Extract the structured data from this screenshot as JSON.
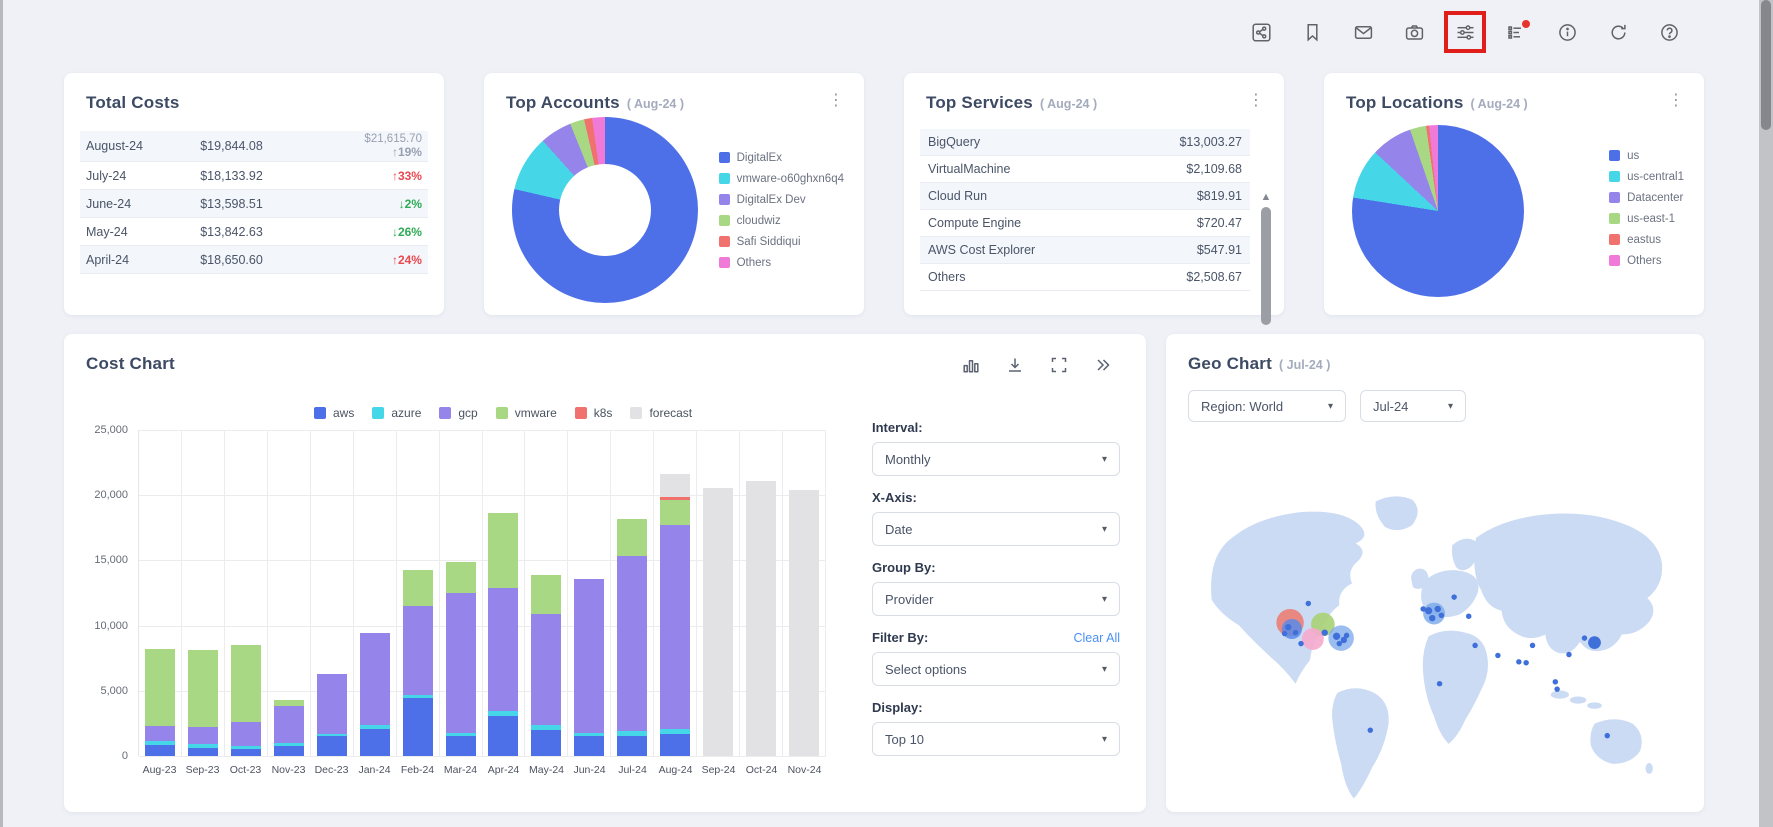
{
  "toolbar": {
    "icons": [
      "share-icon",
      "bookmark-icon",
      "mail-icon",
      "camera-icon",
      "sliders-icon",
      "list-badge-icon",
      "info-icon",
      "refresh-icon",
      "help-icon"
    ],
    "highlight_color": "#e01e1a",
    "badge_color": "#e8332a"
  },
  "total_costs": {
    "title": "Total Costs",
    "rows": [
      {
        "month": "August-24",
        "value": "$19,844.08",
        "forecast": "$21,615.70",
        "pct": "↑19%",
        "pct_class": "pct-gray"
      },
      {
        "month": "July-24",
        "value": "$18,133.92",
        "forecast": null,
        "pct": "↑33%",
        "pct_class": "pct-red"
      },
      {
        "month": "June-24",
        "value": "$13,598.51",
        "forecast": null,
        "pct": "↓2%",
        "pct_class": "pct-green"
      },
      {
        "month": "May-24",
        "value": "$13,842.63",
        "forecast": null,
        "pct": "↓26%",
        "pct_class": "pct-green"
      },
      {
        "month": "April-24",
        "value": "$18,650.60",
        "forecast": null,
        "pct": "↑24%",
        "pct_class": "pct-red"
      }
    ]
  },
  "top_accounts": {
    "title": "Top Accounts",
    "period": "( Aug-24 )",
    "menu": "⋮"
  },
  "top_services": {
    "title": "Top Services",
    "period": "( Aug-24 )",
    "menu": "⋮",
    "rows": [
      {
        "name": "BigQuery",
        "value": "$13,003.27"
      },
      {
        "name": "VirtualMachine",
        "value": "$2,109.68"
      },
      {
        "name": "Cloud Run",
        "value": "$819.91"
      },
      {
        "name": "Compute Engine",
        "value": "$720.47"
      },
      {
        "name": "AWS Cost Explorer",
        "value": "$547.91"
      },
      {
        "name": "Others",
        "value": "$2,508.67"
      }
    ]
  },
  "top_locations": {
    "title": "Top Locations",
    "period": "( Aug-24 )",
    "menu": "⋮"
  },
  "cost_chart": {
    "title": "Cost Chart",
    "toolbar_icons": [
      "bar-chart-icon",
      "download-icon",
      "fullscreen-icon",
      "double-chevron-icon"
    ],
    "controls": {
      "interval_label": "Interval:",
      "interval_value": "Monthly",
      "xaxis_label": "X-Axis:",
      "xaxis_value": "Date",
      "groupby_label": "Group By:",
      "groupby_value": "Provider",
      "filterby_label": "Filter By:",
      "filterby_value": "Select options",
      "clear_all": "Clear All",
      "display_label": "Display:",
      "display_value": "Top 10"
    }
  },
  "geo_chart": {
    "title": "Geo Chart",
    "period": "( Jul-24 )",
    "region_select": "Region: World",
    "month_select": "Jul-24"
  },
  "chart_data": [
    {
      "id": "top_accounts_donut",
      "type": "pie",
      "donut": true,
      "title": "Top Accounts (Aug-24)",
      "labels": [
        "DigitalEx",
        "vmware-o60ghxn6q4",
        "DigitalEx Dev",
        "cloudwiz",
        "Safi Siddiqui",
        "Others"
      ],
      "colors": [
        "#4d6fe8",
        "#45d6e8",
        "#9585ea",
        "#a8d884",
        "#f0716e",
        "#f07ad8"
      ],
      "degrees": [
        283,
        35,
        20,
        9,
        5,
        8
      ],
      "legend_position": "right"
    },
    {
      "id": "top_locations_pie",
      "type": "pie",
      "donut": false,
      "title": "Top Locations (Aug-24)",
      "labels": [
        "us",
        "us-central1",
        "Datacenter",
        "us-east-1",
        "eastus",
        "Others"
      ],
      "colors": [
        "#4d6fe8",
        "#45d6e8",
        "#9585ea",
        "#a8d884",
        "#f0716e",
        "#f07ad8"
      ],
      "degrees": [
        279,
        34,
        28,
        11,
        2,
        6
      ],
      "legend_position": "right"
    },
    {
      "id": "cost_chart_bars",
      "type": "bar",
      "stacked": true,
      "title": "Cost Chart",
      "categories": [
        "Aug-23",
        "Sep-23",
        "Oct-23",
        "Nov-23",
        "Dec-23",
        "Jan-24",
        "Feb-24",
        "Mar-24",
        "Apr-24",
        "May-24",
        "Jun-24",
        "Jul-24",
        "Aug-24",
        "Sep-24",
        "Oct-24",
        "Nov-24"
      ],
      "series": [
        {
          "name": "aws",
          "color": "#4d6fe8",
          "values": [
            850,
            600,
            500,
            750,
            1500,
            2100,
            4450,
            1500,
            3100,
            2000,
            1500,
            1500,
            1700,
            0,
            0,
            0
          ]
        },
        {
          "name": "azure",
          "color": "#45d6e8",
          "values": [
            280,
            350,
            280,
            250,
            200,
            250,
            200,
            300,
            350,
            350,
            300,
            450,
            400,
            0,
            0,
            0
          ]
        },
        {
          "name": "gcp",
          "color": "#9585ea",
          "values": [
            1200,
            1300,
            1850,
            2850,
            4600,
            7100,
            6850,
            10700,
            9450,
            8550,
            11800,
            13400,
            15600,
            0,
            0,
            0
          ]
        },
        {
          "name": "vmware",
          "color": "#a8d884",
          "values": [
            5900,
            5850,
            5900,
            450,
            0,
            0,
            2750,
            2400,
            5750,
            2950,
            0,
            2800,
            1900,
            0,
            0,
            0
          ]
        },
        {
          "name": "k8s",
          "color": "#f0716e",
          "values": [
            0,
            0,
            0,
            0,
            0,
            0,
            0,
            0,
            0,
            0,
            0,
            0,
            250,
            0,
            0,
            0
          ]
        },
        {
          "name": "forecast",
          "color": "#e2e2e4",
          "values": [
            0,
            0,
            0,
            0,
            0,
            0,
            0,
            0,
            0,
            0,
            0,
            0,
            1770,
            20550,
            21100,
            20430
          ]
        }
      ],
      "ylim": [
        0,
        25000
      ],
      "y_ticks": [
        "0",
        "5,000",
        "10,000",
        "15,000",
        "20,000",
        "25,000"
      ],
      "grid": true,
      "legend_position": "top"
    },
    {
      "id": "geo_bubbles",
      "type": "scatter",
      "title": "Geo Chart (Jul-24)",
      "land_color": "#cbdbf4",
      "dot_color": "#3f6fd9",
      "bubbles": [
        {
          "x": 106,
          "y": 185,
          "r": 15,
          "color": "#ec7d74",
          "o": 0.9
        },
        {
          "x": 108,
          "y": 192,
          "r": 11,
          "color": "#5b8bea",
          "o": 0.85
        },
        {
          "x": 142,
          "y": 187,
          "r": 13,
          "color": "#a9d175",
          "o": 0.9
        },
        {
          "x": 131,
          "y": 203,
          "r": 12,
          "color": "#f6aacd",
          "o": 0.9
        },
        {
          "x": 162,
          "y": 202,
          "r": 14,
          "color": "#79a7ea",
          "o": 0.75
        },
        {
          "x": 264,
          "y": 175,
          "r": 12,
          "color": "#79a7ea",
          "o": 0.8
        }
      ],
      "dots": [
        {
          "x": 104,
          "y": 190,
          "r": 3.5
        },
        {
          "x": 112,
          "y": 196,
          "r": 3
        },
        {
          "x": 100,
          "y": 197,
          "r": 3
        },
        {
          "x": 144,
          "y": 196,
          "r": 3.5
        },
        {
          "x": 126,
          "y": 164,
          "r": 3
        },
        {
          "x": 118,
          "y": 208,
          "r": 3
        },
        {
          "x": 157,
          "y": 200,
          "r": 4
        },
        {
          "x": 165,
          "y": 204,
          "r": 3.5
        },
        {
          "x": 160,
          "y": 208,
          "r": 3
        },
        {
          "x": 168,
          "y": 199,
          "r": 3
        },
        {
          "x": 258,
          "y": 172,
          "r": 4
        },
        {
          "x": 268,
          "y": 170,
          "r": 3.5
        },
        {
          "x": 272,
          "y": 177,
          "r": 3
        },
        {
          "x": 262,
          "y": 180,
          "r": 3.5
        },
        {
          "x": 252,
          "y": 170,
          "r": 3
        },
        {
          "x": 286,
          "y": 157,
          "r": 3
        },
        {
          "x": 302,
          "y": 178,
          "r": 3
        },
        {
          "x": 309,
          "y": 210,
          "r": 3
        },
        {
          "x": 334,
          "y": 221,
          "r": 3
        },
        {
          "x": 357,
          "y": 228,
          "r": 3
        },
        {
          "x": 365,
          "y": 229,
          "r": 3
        },
        {
          "x": 372,
          "y": 210,
          "r": 3
        },
        {
          "x": 412,
          "y": 220,
          "r": 3
        },
        {
          "x": 429,
          "y": 202,
          "r": 3
        },
        {
          "x": 440,
          "y": 207,
          "r": 7
        },
        {
          "x": 397,
          "y": 250,
          "r": 3
        },
        {
          "x": 399,
          "y": 258,
          "r": 3
        },
        {
          "x": 270,
          "y": 252,
          "r": 3
        },
        {
          "x": 194,
          "y": 303,
          "r": 3
        },
        {
          "x": 454,
          "y": 309,
          "r": 3
        }
      ]
    }
  ]
}
